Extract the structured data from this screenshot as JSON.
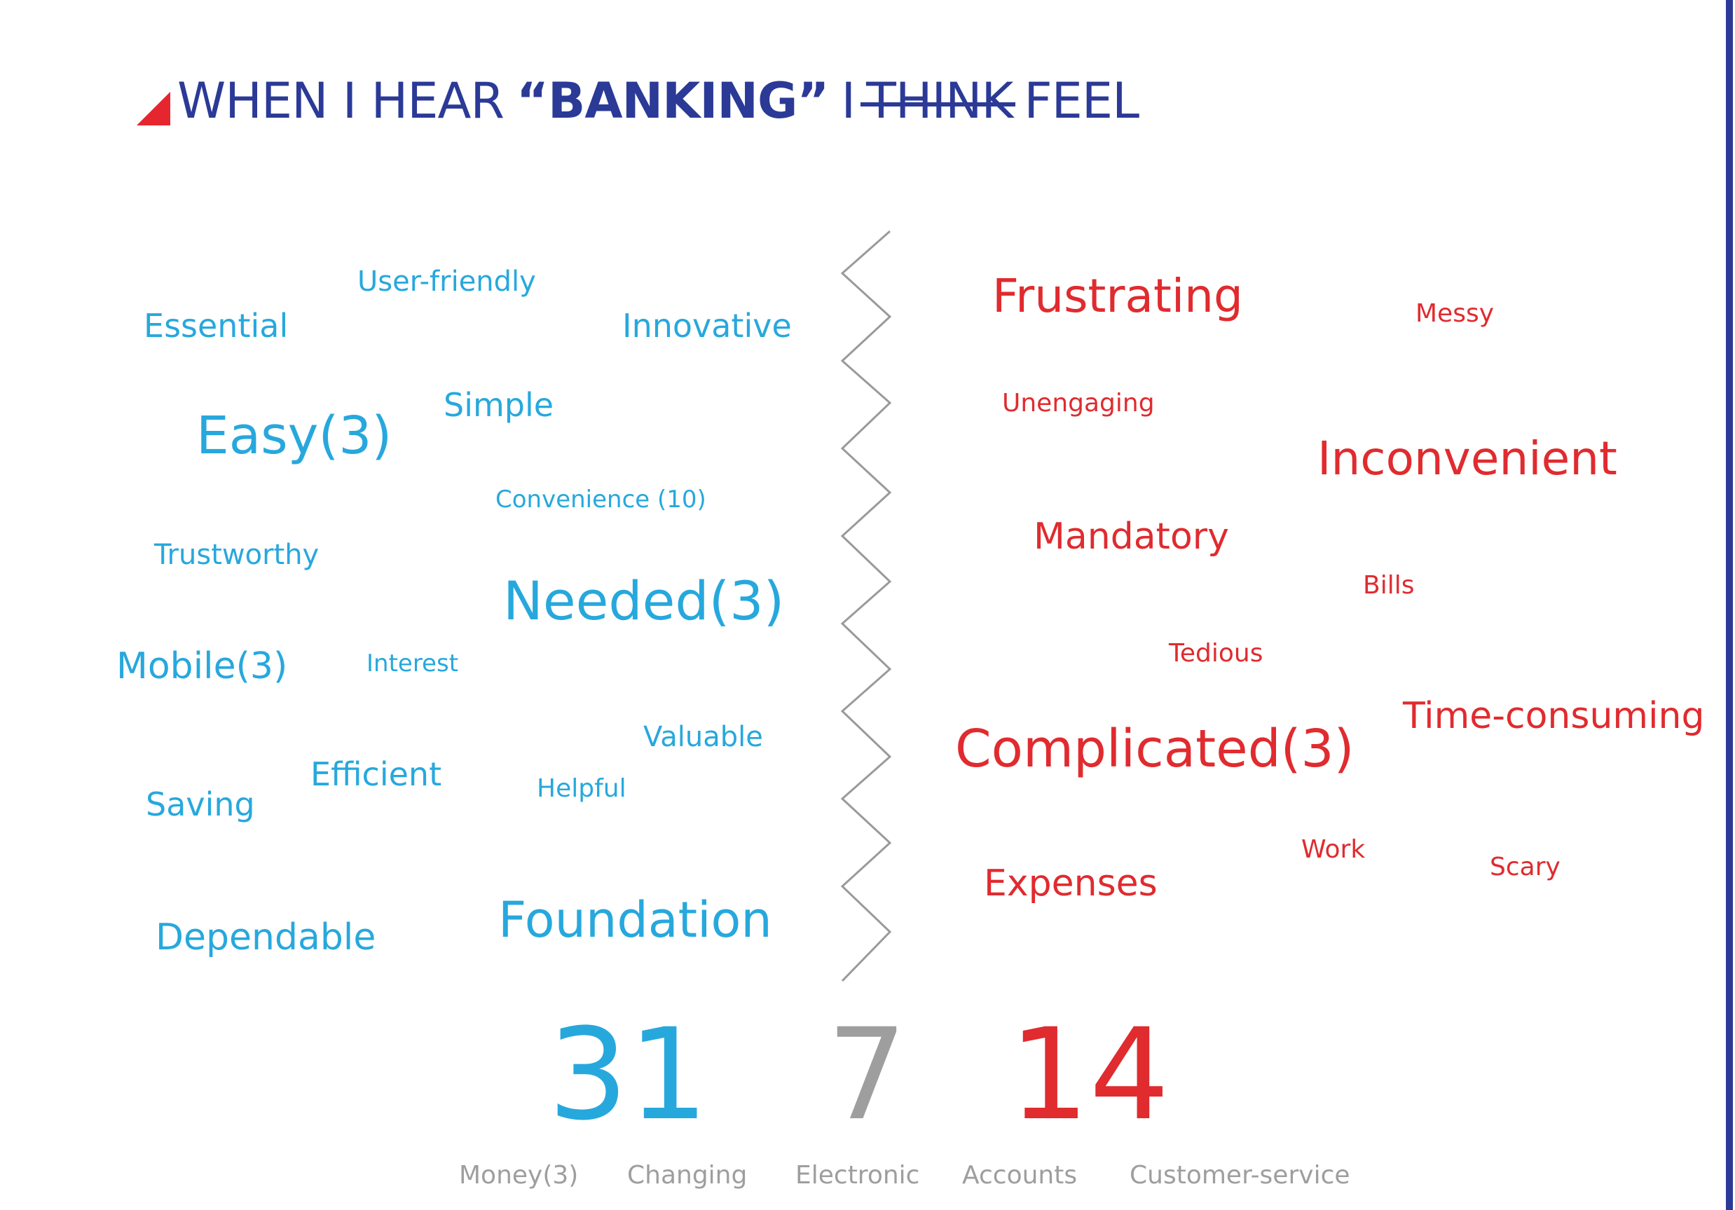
{
  "heading": {
    "part1": "WHEN I HEAR",
    "part2": "“BANKING”",
    "part3": "I",
    "struck": "THINK",
    "part4": "FEEL"
  },
  "colors": {
    "navy": "#2b3a97",
    "positive": "#27a8dd",
    "negative": "#e02b2f",
    "neutral": "#9e9e9e",
    "accent_triangle": "#e5262e"
  },
  "positive_words": [
    "User-friendly",
    "Essential",
    "Innovative",
    "Simple",
    "Easy(3)",
    "Convenience (10)",
    "Trustworthy",
    "Needed(3)",
    "Mobile(3)",
    "Interest",
    "Valuable",
    "Efficient",
    "Helpful",
    "Saving",
    "Foundation",
    "Dependable"
  ],
  "negative_words": [
    "Frustrating",
    "Messy",
    "Unengaging",
    "Inconvenient",
    "Mandatory",
    "Bills",
    "Tedious",
    "Time-consuming",
    "Complicated(3)",
    "Work",
    "Scary",
    "Expenses"
  ],
  "stats": {
    "positive": "31",
    "neutral": "7",
    "negative": "14"
  },
  "neutral_words": [
    "Money(3)",
    "Changing",
    "Electronic",
    "Accounts",
    "Customer-service"
  ]
}
